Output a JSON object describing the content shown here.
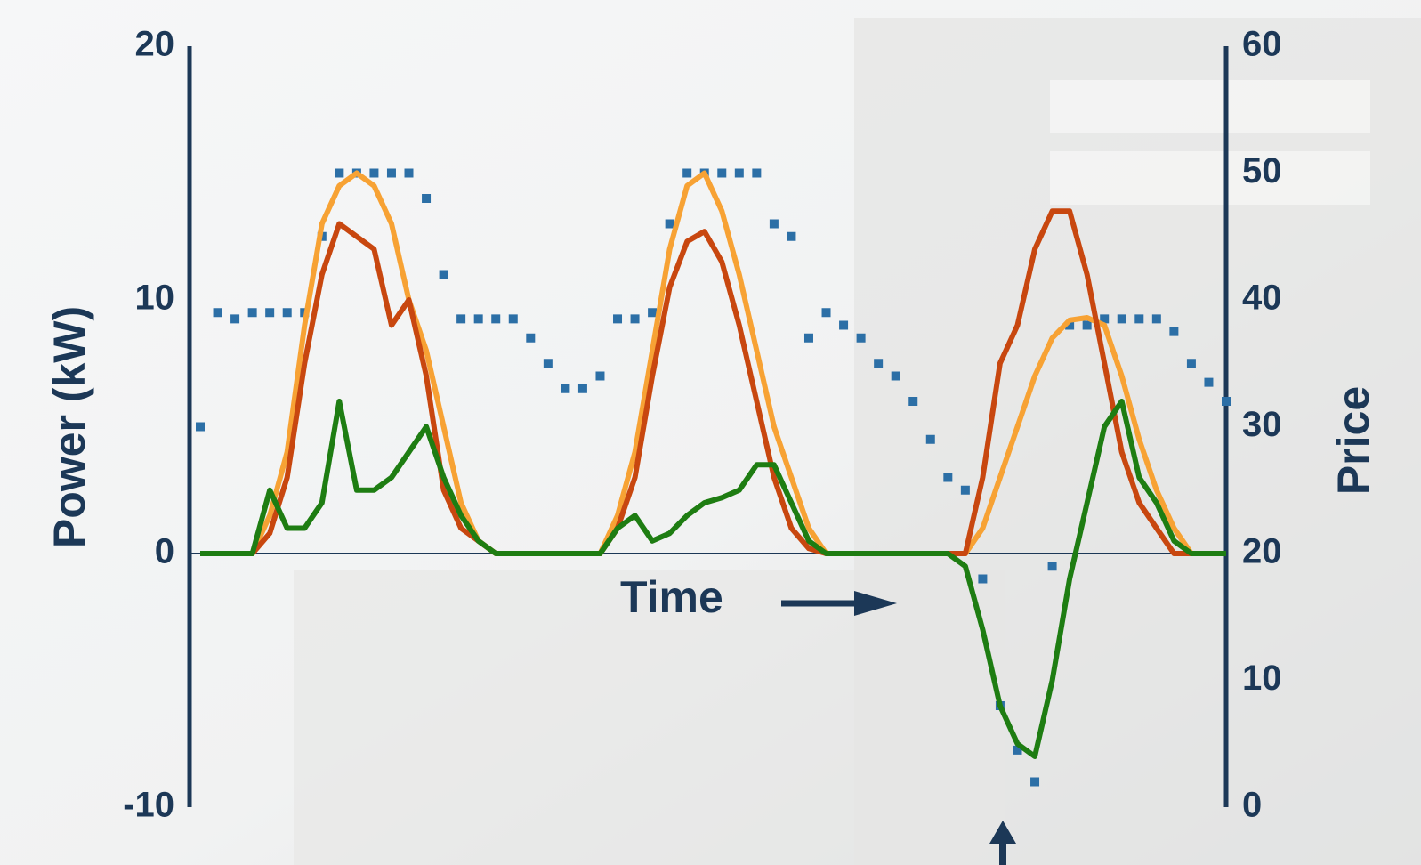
{
  "chart_data": {
    "type": "line",
    "x_label": "Time",
    "y_label": "Power (kW)",
    "y2_label": "Price",
    "x": [
      0,
      1,
      2,
      3,
      4,
      5,
      6,
      7,
      8,
      9,
      10,
      11,
      12,
      13,
      14,
      15,
      16,
      17,
      18,
      19,
      20,
      21,
      22,
      23,
      24,
      25,
      26,
      27,
      28,
      29,
      30,
      31,
      32,
      33,
      34,
      35,
      36,
      37,
      38,
      39,
      40,
      41,
      42,
      43,
      44,
      45,
      46,
      47,
      48,
      49,
      50,
      51,
      52,
      53,
      54,
      55,
      56,
      57,
      58,
      59
    ],
    "xlim": [
      0,
      59
    ],
    "ylim": [
      -10,
      20
    ],
    "yticks": [
      -10,
      0,
      10,
      20
    ],
    "y2lim": [
      0,
      60
    ],
    "y2ticks": [
      0,
      10,
      20,
      30,
      40,
      50,
      60
    ],
    "series": [
      {
        "color": "#f7a234",
        "values": [
          0,
          0,
          0,
          0,
          1.5,
          4,
          9,
          13,
          14.5,
          15,
          14.5,
          13,
          10,
          8,
          5,
          2,
          0.5,
          0,
          0,
          0,
          0,
          0,
          0,
          0,
          1.5,
          4,
          8,
          12,
          14.5,
          15,
          13.5,
          11,
          8,
          5,
          3,
          1,
          0,
          0,
          0,
          0,
          0,
          0,
          0,
          0,
          0,
          1,
          3,
          5,
          7,
          8.5,
          9.2,
          9.3,
          9,
          7,
          4.5,
          2.5,
          1,
          0,
          0,
          0
        ]
      },
      {
        "color": "#c8470f",
        "values": [
          0,
          0,
          0,
          0,
          0.8,
          3,
          7.5,
          11,
          13,
          12.5,
          12,
          9,
          10,
          7,
          2.5,
          1,
          0.5,
          0,
          0,
          0,
          0,
          0,
          0,
          0,
          1,
          3,
          7,
          10.5,
          12.3,
          12.7,
          11.5,
          9,
          6,
          3,
          1,
          0.2,
          0,
          0,
          0,
          0,
          0,
          0,
          0,
          0,
          0,
          3,
          7.5,
          9,
          12,
          13.5,
          13.5,
          11,
          7.5,
          4,
          2,
          1,
          0,
          0,
          0,
          0
        ]
      },
      {
        "color": "#1e7d12",
        "values": [
          0,
          0,
          0,
          0,
          2.5,
          1,
          1,
          2,
          6,
          2.5,
          2.5,
          3,
          4,
          5,
          3,
          1.5,
          0.5,
          0,
          0,
          0,
          0,
          0,
          0,
          0,
          1,
          1.5,
          0.5,
          0.8,
          1.5,
          2,
          2.2,
          2.5,
          3.5,
          3.5,
          2,
          0.5,
          0,
          0,
          0,
          0,
          0,
          0,
          0,
          0,
          -0.5,
          -3,
          -6,
          -7.5,
          -8,
          -5,
          -1,
          2,
          5,
          6,
          3,
          2,
          0.5,
          0,
          0,
          0
        ]
      },
      {
        "color": "#2c6fa6",
        "type": "scatter",
        "axis": "y2",
        "values": [
          30,
          39,
          38.5,
          39,
          39,
          39,
          39,
          45,
          50,
          50,
          50,
          50,
          50,
          48,
          42,
          38.5,
          38.5,
          38.5,
          38.5,
          37,
          35,
          33,
          33,
          34,
          38.5,
          38.5,
          39,
          46,
          50,
          50,
          50,
          50,
          50,
          46,
          45,
          37,
          39,
          38,
          37,
          35,
          34,
          32,
          29,
          26,
          25,
          18,
          8,
          4.5,
          2,
          19,
          38,
          38,
          38.5,
          38.5,
          38.5,
          38.5,
          37.5,
          35,
          33.5,
          32
        ]
      }
    ]
  }
}
